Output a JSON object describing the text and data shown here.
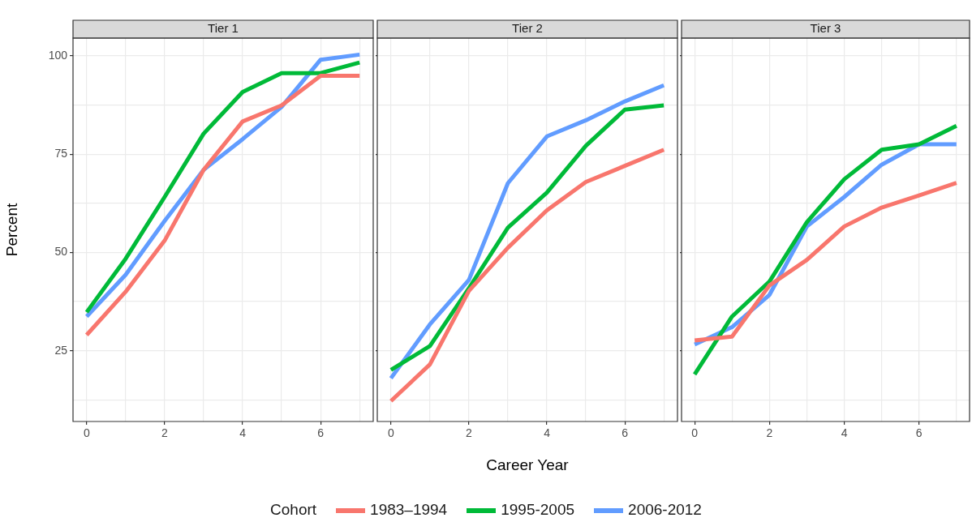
{
  "chart_data": [
    {
      "type": "line",
      "title": "Tier 1",
      "ylabel": "Percent",
      "legend_title": "Cohort",
      "legend": "bottom",
      "grid": true,
      "line_style": "solid",
      "x": [
        0,
        1,
        2,
        3,
        4,
        5,
        6,
        7
      ],
      "xlim": [
        -0.35,
        7.35
      ],
      "xticks": [
        0,
        {
          "value": 1,
          "label": null
        },
        2,
        {
          "value": 3,
          "label": null
        },
        4,
        {
          "value": 5,
          "label": null
        },
        6,
        {
          "value": 7,
          "label": null
        }
      ],
      "ylim": [
        7,
        104.5
      ],
      "yticks": [
        {
          "value": 12.5,
          "label": null
        },
        25,
        {
          "value": 37.5,
          "label": null
        },
        50,
        {
          "value": 62.5,
          "label": null
        },
        75,
        {
          "value": 87.5,
          "label": null
        },
        100
      ],
      "series": [
        {
          "name": "1983–1994",
          "color": "#f8766d",
          "values": [
            29.0,
            40.0,
            53.0,
            71.0,
            83.3,
            87.4,
            94.9,
            94.9
          ]
        },
        {
          "name": "1995-2005",
          "color": "#00ba38",
          "values": [
            34.8,
            48.4,
            64.1,
            80.2,
            90.8,
            95.6,
            95.6,
            98.3
          ]
        },
        {
          "name": "2006-2012",
          "color": "#619cff",
          "values": [
            33.7,
            44.3,
            58.0,
            71.0,
            78.8,
            87.0,
            99.0,
            100.3
          ]
        }
      ]
    },
    {
      "type": "line",
      "title": "Tier 2",
      "xlabel": "Career Year",
      "grid": true,
      "line_style": "solid",
      "tick_labels": "x",
      "x": [
        0,
        1,
        2,
        3,
        4,
        5,
        6,
        7
      ],
      "xlim": [
        -0.35,
        7.35
      ],
      "xticks": [
        0,
        {
          "value": 1,
          "label": null
        },
        2,
        {
          "value": 3,
          "label": null
        },
        4,
        {
          "value": 5,
          "label": null
        },
        6,
        {
          "value": 7,
          "label": null
        }
      ],
      "ylim": [
        7,
        104.5
      ],
      "yticks": [
        {
          "value": 12.5,
          "label": null
        },
        25,
        {
          "value": 37.5,
          "label": null
        },
        50,
        {
          "value": 62.5,
          "label": null
        },
        75,
        {
          "value": 87.5,
          "label": null
        },
        100
      ],
      "series": [
        {
          "color": "#f8766d",
          "values": [
            12.2,
            21.5,
            40.2,
            51.2,
            60.7,
            67.9,
            72.0,
            76.1
          ]
        },
        {
          "color": "#00ba38",
          "values": [
            20.1,
            26.2,
            40.9,
            56.3,
            65.2,
            77.1,
            86.3,
            87.4
          ]
        },
        {
          "color": "#619cff",
          "values": [
            18.0,
            31.7,
            43.0,
            67.6,
            79.5,
            83.6,
            88.4,
            92.5
          ]
        }
      ]
    },
    {
      "type": "line",
      "title": "Tier 3",
      "grid": true,
      "line_style": "solid",
      "tick_labels": "x",
      "x": [
        0,
        1,
        2,
        3,
        4,
        5,
        6,
        7
      ],
      "xlim": [
        -0.35,
        7.35
      ],
      "xticks": [
        0,
        {
          "value": 1,
          "label": null
        },
        2,
        {
          "value": 3,
          "label": null
        },
        4,
        {
          "value": 5,
          "label": null
        },
        6,
        {
          "value": 7,
          "label": null
        }
      ],
      "ylim": [
        7,
        104.5
      ],
      "yticks": [
        {
          "value": 12.5,
          "label": null
        },
        25,
        {
          "value": 37.5,
          "label": null
        },
        50,
        {
          "value": 62.5,
          "label": null
        },
        75,
        {
          "value": 87.5,
          "label": null
        },
        100
      ],
      "series": [
        {
          "color": "#f8766d",
          "values": [
            27.6,
            28.6,
            41.6,
            48.1,
            56.6,
            61.4,
            64.5,
            67.7
          ]
        },
        {
          "color": "#00ba38",
          "values": [
            19.0,
            33.7,
            42.6,
            57.7,
            68.6,
            76.1,
            77.5,
            82.2
          ]
        },
        {
          "color": "#619cff",
          "values": [
            26.6,
            31.0,
            39.2,
            56.6,
            64.1,
            72.3,
            77.5,
            77.5
          ]
        }
      ]
    }
  ]
}
